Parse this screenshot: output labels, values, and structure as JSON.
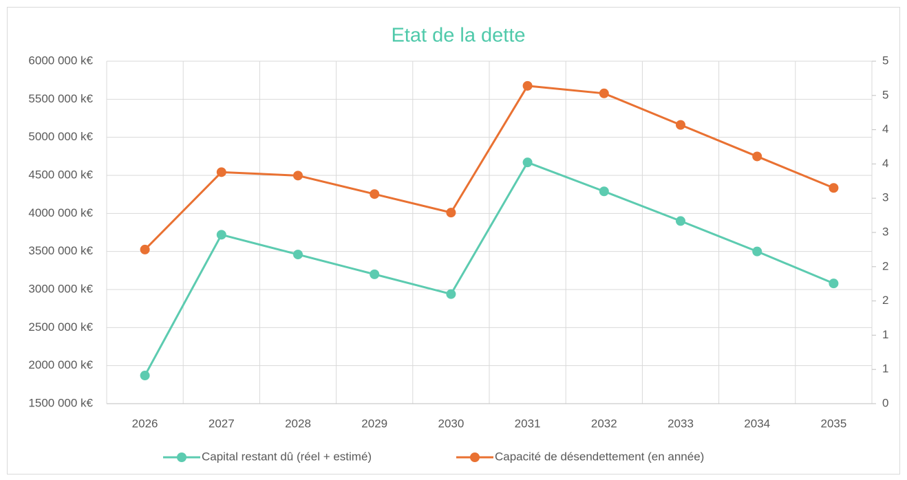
{
  "chart_data": {
    "type": "line",
    "title": "Etat de la dette",
    "title_color": "#4fc9aa",
    "categories": [
      "2026",
      "2027",
      "2028",
      "2029",
      "2030",
      "2031",
      "2032",
      "2033",
      "2034",
      "2035"
    ],
    "series": [
      {
        "name": "Capital restant dû (réel + estimé)",
        "color": "#5ccbb0",
        "axis": "y",
        "values": [
          1870000,
          3720000,
          3460000,
          3200000,
          2940000,
          4670000,
          4290000,
          3900000,
          3500000,
          3080000
        ]
      },
      {
        "name": "Capacité de désendettement (en année)",
        "color": "#e97132",
        "axis": "y2",
        "values": [
          2.25,
          3.38,
          3.33,
          3.06,
          2.79,
          4.64,
          4.53,
          4.07,
          3.61,
          3.15
        ]
      }
    ],
    "ylim": [
      1500000,
      6000000
    ],
    "yticks": [
      {
        "value": 1500000,
        "label": "1500 000  k€"
      },
      {
        "value": 2000000,
        "label": "2000 000  k€"
      },
      {
        "value": 2500000,
        "label": "2500 000  k€"
      },
      {
        "value": 3000000,
        "label": "3000 000  k€"
      },
      {
        "value": 3500000,
        "label": "3500 000  k€"
      },
      {
        "value": 4000000,
        "label": "4000 000  k€"
      },
      {
        "value": 4500000,
        "label": "4500 000  k€"
      },
      {
        "value": 5000000,
        "label": "5000 000  k€"
      },
      {
        "value": 5500000,
        "label": "5500 000  k€"
      },
      {
        "value": 6000000,
        "label": "6000 000  k€"
      }
    ],
    "y2lim": [
      0,
      5
    ],
    "y2ticks": [
      0,
      {
        "value": 0.5,
        "label": "1"
      },
      1,
      {
        "value": 1.5,
        "label": "2"
      },
      2,
      {
        "value": 2.5,
        "label": "3"
      },
      3,
      {
        "value": 3.5,
        "label": "4"
      },
      4,
      {
        "value": 4.5,
        "label": "5"
      },
      5
    ],
    "grid": true,
    "legend": "bottom"
  }
}
